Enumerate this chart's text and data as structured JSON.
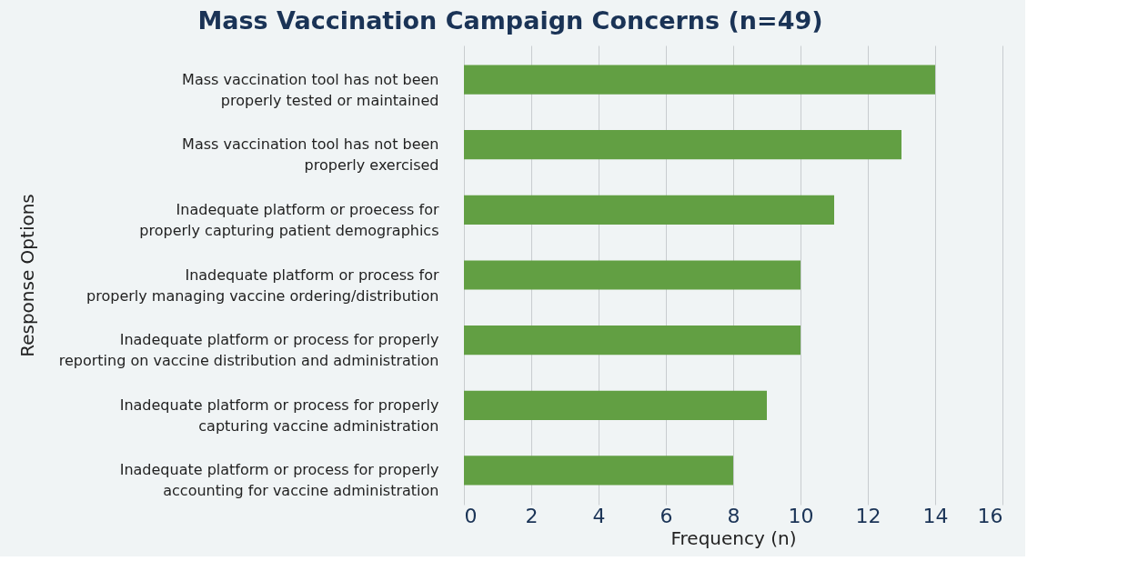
{
  "chart_data": {
    "type": "bar",
    "orientation": "horizontal",
    "title": "Mass Vaccination Campaign Concerns (n=49)",
    "xlabel": "Frequency (n)",
    "ylabel": "Response  Options",
    "categories": [
      "Mass vaccination tool has not been\nproperly tested or maintained",
      "Mass vaccination tool has not been\nproperly exercised",
      "Inadequate platform or proecess for\nproperly capturing patient demographics",
      "Inadequate platform or process for\nproperly managing vaccine ordering/distribution",
      "Inadequate platform or process for properly\nreporting on vaccine distribution and administration",
      "Inadequate platform or process for properly\ncapturing vaccine administration",
      "Inadequate platform or process for properly\naccounting for vaccine administration"
    ],
    "values": [
      14,
      13,
      11,
      10,
      10,
      9,
      8
    ],
    "color": "#629f43",
    "xlim": [
      0,
      16
    ],
    "xticks": [
      0,
      2,
      4,
      6,
      8,
      10,
      12,
      14,
      16
    ],
    "grid": "x"
  }
}
